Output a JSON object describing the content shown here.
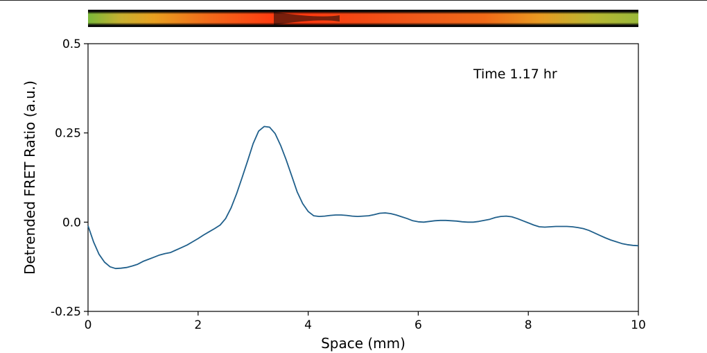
{
  "chart_data": {
    "type": "line",
    "xlabel": "Space (mm)",
    "ylabel": "Detrended FRET Ratio (a.u.)",
    "xlim": [
      0,
      10
    ],
    "ylim": [
      -0.25,
      0.5
    ],
    "xticks": [
      0,
      2,
      4,
      6,
      8,
      10
    ],
    "xtick_labels": [
      "0",
      "2",
      "4",
      "6",
      "8",
      "10"
    ],
    "yticks": [
      -0.25,
      0,
      0.25,
      0.5
    ],
    "ytick_labels": [
      "-0.25",
      "0.0",
      "0.25",
      "0.5"
    ],
    "annotation": "Time 1.17 hr",
    "line_color": "#1f5f8b",
    "grid": false,
    "strip_colors": [
      "#7ab83a",
      "#e8a020",
      "#f05a1a",
      "#ff3a10",
      "#101010"
    ],
    "series": [
      {
        "x": [
          0,
          0.1,
          0.2,
          0.3,
          0.4,
          0.5,
          0.6,
          0.7,
          0.8,
          0.9,
          1.0,
          1.1,
          1.2,
          1.3,
          1.4,
          1.5,
          1.6,
          1.7,
          1.8,
          1.9,
          2.0,
          2.1,
          2.2,
          2.3,
          2.4,
          2.5,
          2.6,
          2.7,
          2.8,
          2.9,
          3.0,
          3.1,
          3.2,
          3.3,
          3.4,
          3.5,
          3.6,
          3.7,
          3.8,
          3.9,
          4.0,
          4.1,
          4.2,
          4.3,
          4.4,
          4.5,
          4.6,
          4.7,
          4.8,
          4.9,
          5.0,
          5.1,
          5.2,
          5.3,
          5.4,
          5.5,
          5.6,
          5.7,
          5.8,
          5.9,
          6.0,
          6.1,
          6.2,
          6.3,
          6.4,
          6.5,
          6.6,
          6.7,
          6.8,
          6.9,
          7.0,
          7.1,
          7.2,
          7.3,
          7.4,
          7.5,
          7.6,
          7.7,
          7.8,
          7.9,
          8.0,
          8.1,
          8.2,
          8.3,
          8.4,
          8.5,
          8.6,
          8.7,
          8.8,
          8.9,
          9.0,
          9.1,
          9.2,
          9.3,
          9.4,
          9.5,
          9.6,
          9.7,
          9.8,
          9.9,
          10.0
        ],
        "y": [
          -0.01,
          -0.055,
          -0.09,
          -0.112,
          -0.125,
          -0.13,
          -0.129,
          -0.127,
          -0.123,
          -0.118,
          -0.11,
          -0.104,
          -0.098,
          -0.092,
          -0.088,
          -0.085,
          -0.078,
          -0.071,
          -0.064,
          -0.055,
          -0.046,
          -0.036,
          -0.027,
          -0.018,
          -0.008,
          0.01,
          0.04,
          0.08,
          0.125,
          0.172,
          0.22,
          0.255,
          0.268,
          0.266,
          0.248,
          0.215,
          0.175,
          0.13,
          0.085,
          0.052,
          0.03,
          0.018,
          0.016,
          0.017,
          0.019,
          0.02,
          0.02,
          0.019,
          0.017,
          0.016,
          0.017,
          0.018,
          0.021,
          0.025,
          0.026,
          0.024,
          0.02,
          0.015,
          0.01,
          0.004,
          0.001,
          0.0,
          0.002,
          0.004,
          0.005,
          0.005,
          0.004,
          0.003,
          0.001,
          0.0,
          0.0,
          0.002,
          0.005,
          0.008,
          0.013,
          0.016,
          0.017,
          0.015,
          0.01,
          0.004,
          -0.002,
          -0.008,
          -0.013,
          -0.014,
          -0.013,
          -0.012,
          -0.012,
          -0.012,
          -0.013,
          -0.015,
          -0.018,
          -0.023,
          -0.03,
          -0.037,
          -0.044,
          -0.05,
          -0.055,
          -0.06,
          -0.063,
          -0.065,
          -0.066
        ]
      }
    ]
  }
}
